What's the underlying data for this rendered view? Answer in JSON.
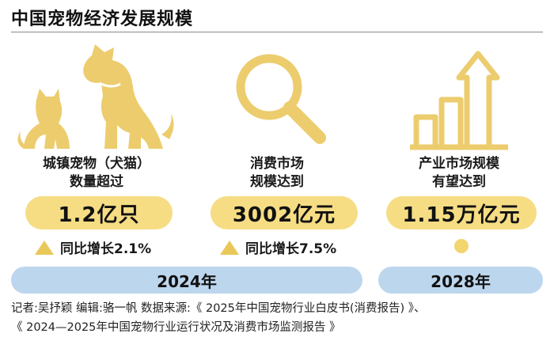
{
  "title": "中国宠物经济发展规模",
  "icons": [
    "cat-dog-silhouette-icon",
    "magnifier-icon",
    "rising-bar-chart-icon"
  ],
  "colors": {
    "accent_yellow": "#f6dd84",
    "icon_gold": "#eccc6d",
    "year_blue": "#bcd6ee",
    "rule": "#888888"
  },
  "columns": [
    {
      "label_line1": "城镇宠物（犬猫）",
      "label_line2": "数量超过",
      "value": "1.2亿只",
      "growth": "同比增长2.1%"
    },
    {
      "label_line1": "消费市场",
      "label_line2": "规模达到",
      "value": "3002亿元",
      "growth": "同比增长7.5%"
    },
    {
      "label_line1": "产业市场规模",
      "label_line2": "有望达到",
      "value": "1.15万亿元",
      "growth": ""
    }
  ],
  "years": {
    "left": "2024年",
    "right": "2028年"
  },
  "source": {
    "line1": "记者:吴抒颖   编辑:骆一帆   数据来源:《 2025年中国宠物行业白皮书(消费报告) 》、",
    "line2": "《 2024—2025年中国宠物行业运行状况及消费市场监测报告 》"
  }
}
